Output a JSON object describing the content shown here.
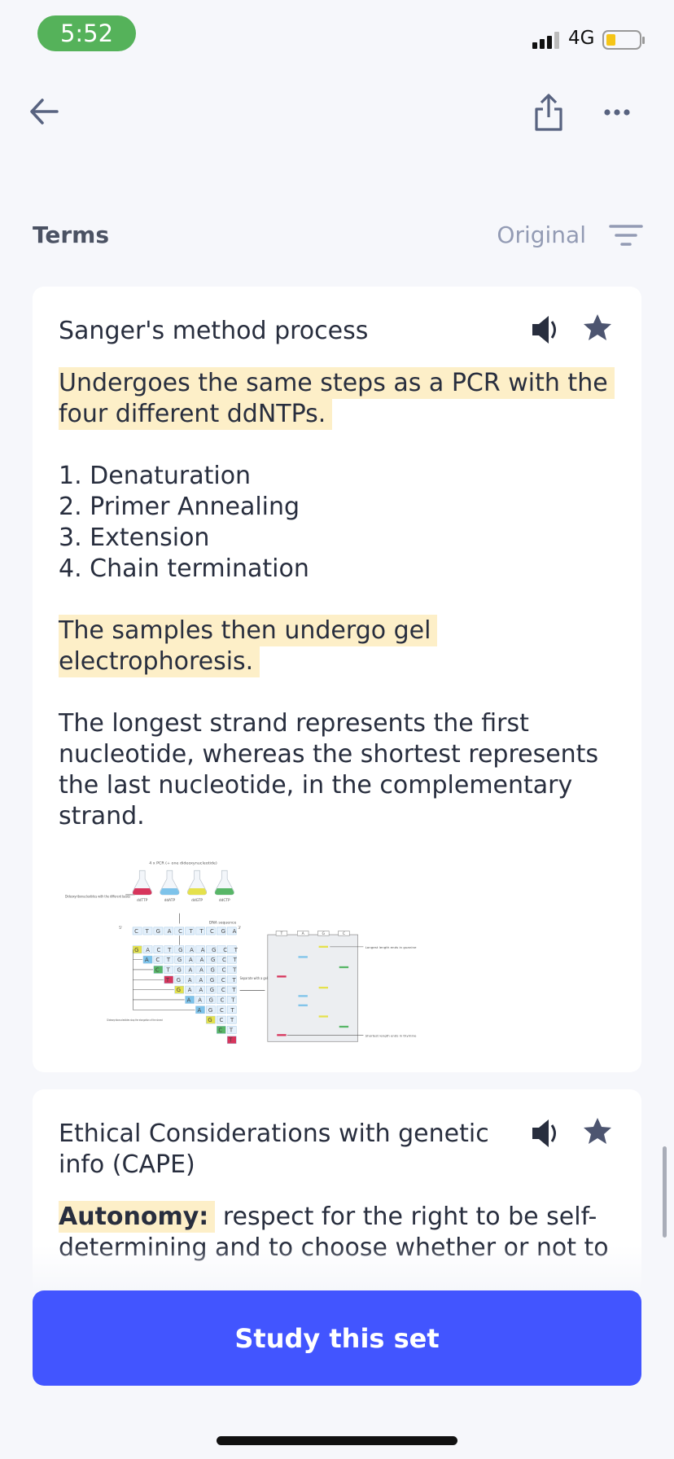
{
  "status_bar": {
    "time": "5:52",
    "network": "4G"
  },
  "header": {
    "section_title": "Terms",
    "sort_label": "Original"
  },
  "cards": [
    {
      "term": "Sanger's method process",
      "definition": {
        "highlight_1": "Undergoes the same steps as a PCR with the four different ddNTPs.",
        "steps": [
          "1. Denaturation",
          "2. Primer Annealing",
          "3. Extension",
          "4. Chain termination"
        ],
        "highlight_2": "The samples then undergo gel electrophoresis.",
        "paragraph": "The longest strand represents the first nucleotide, whereas the shortest represents the last nucleotide, in the complementary strand."
      },
      "diagram": {
        "title": "4 x PCR (+ one dideoxynucleotide)",
        "bases_label": "Dideoxyribonucleotides with the different bases",
        "flasks": [
          "ddTTP",
          "ddATP",
          "ddGTP",
          "ddCTP"
        ],
        "sequence_label": "DNA sequence",
        "five_prime": "5'",
        "three_prime": "3'",
        "template": "CTGACTTCGA",
        "fragments": [
          "GACTGAAGCT",
          "ACTGAAGCT",
          "CTGAAGCT",
          "TGAAGCT",
          "GAAGCT",
          "AAGCT",
          "AGCT",
          "GCT",
          "CT",
          "T"
        ],
        "stop_label": "Dideoxyribonucleotides stop the elongation of the strand",
        "separate_label": "Separate with a gel",
        "lanes": [
          "T",
          "A",
          "G",
          "C"
        ],
        "longest_label": "Longest length ends in guanine",
        "shortest_label": "Shortest length ends in thymine"
      }
    },
    {
      "term": "Ethical Considerations with genetic info (CAPE)",
      "definition": {
        "highlight": "Autonomy:",
        "text": " respect for the right to be self-determining and to choose whether or not to"
      }
    }
  ],
  "button": {
    "label": "Study this set"
  }
}
